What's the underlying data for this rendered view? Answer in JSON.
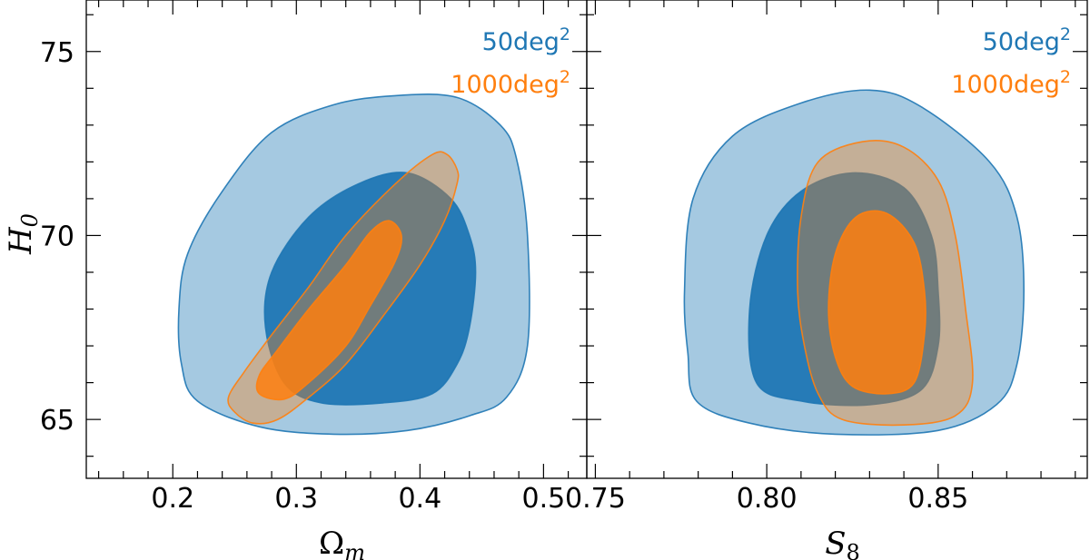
{
  "chart_data": [
    {
      "type": "contour",
      "panel": "left",
      "xlabel_main": "Ω",
      "xlabel_sub": "m",
      "ylabel_main": "H",
      "ylabel_sub": "0",
      "xlim": [
        0.13,
        0.535
      ],
      "ylim": [
        63.4,
        76.4
      ],
      "xticks": [
        0.2,
        0.3,
        0.4,
        0.5
      ],
      "xtick_labels": [
        "0.2",
        "0.3",
        "0.4",
        "0.5"
      ],
      "yticks": [
        65,
        70,
        75
      ],
      "ytick_labels": [
        "65",
        "70",
        "75"
      ],
      "legend": [
        {
          "base": "50deg",
          "sup": "2",
          "color": "#1f77b4"
        },
        {
          "base": "1000deg",
          "sup": "2",
          "color": "#ff7f0e"
        }
      ],
      "series": [
        {
          "name": "50deg2",
          "color": "#1f77b4",
          "levels": [
            {
              "level": "2sigma",
              "fill_opacity": 0.4,
              "points": [
                [
                  0.22,
                  65.5
                ],
                [
                  0.27,
                  64.8
                ],
                [
                  0.33,
                  64.6
                ],
                [
                  0.39,
                  64.7
                ],
                [
                  0.44,
                  65.1
                ],
                [
                  0.47,
                  65.6
                ],
                [
                  0.487,
                  67.0
                ],
                [
                  0.487,
                  70.0
                ],
                [
                  0.478,
                  72.1
                ],
                [
                  0.465,
                  73.0
                ],
                [
                  0.43,
                  73.75
                ],
                [
                  0.38,
                  73.8
                ],
                [
                  0.33,
                  73.55
                ],
                [
                  0.28,
                  72.8
                ],
                [
                  0.24,
                  71.2
                ],
                [
                  0.212,
                  69.5
                ],
                [
                  0.205,
                  68.0
                ],
                [
                  0.207,
                  66.5
                ]
              ]
            },
            {
              "level": "1sigma",
              "fill_opacity": 0.95,
              "points": [
                [
                  0.29,
                  66.0
                ],
                [
                  0.32,
                  65.45
                ],
                [
                  0.37,
                  65.45
                ],
                [
                  0.41,
                  65.7
                ],
                [
                  0.43,
                  66.5
                ],
                [
                  0.44,
                  67.5
                ],
                [
                  0.445,
                  69.0
                ],
                [
                  0.44,
                  70.0
                ],
                [
                  0.425,
                  71.0
                ],
                [
                  0.39,
                  71.7
                ],
                [
                  0.35,
                  71.4
                ],
                [
                  0.31,
                  70.5
                ],
                [
                  0.28,
                  69.0
                ],
                [
                  0.275,
                  67.5
                ]
              ]
            }
          ]
        },
        {
          "name": "1000deg2",
          "color": "#ff7f0e",
          "levels": [
            {
              "level": "2sigma",
              "fill_opacity": 0.35,
              "points": [
                [
                  0.25,
                  65.2
                ],
                [
                  0.265,
                  64.9
                ],
                [
                  0.285,
                  65.0
                ],
                [
                  0.31,
                  65.6
                ],
                [
                  0.34,
                  66.5
                ],
                [
                  0.37,
                  67.8
                ],
                [
                  0.4,
                  69.2
                ],
                [
                  0.42,
                  70.4
                ],
                [
                  0.43,
                  71.4
                ],
                [
                  0.43,
                  71.8
                ],
                [
                  0.422,
                  72.2
                ],
                [
                  0.41,
                  72.2
                ],
                [
                  0.38,
                  71.4
                ],
                [
                  0.34,
                  70.0
                ],
                [
                  0.31,
                  68.6
                ],
                [
                  0.28,
                  67.3
                ],
                [
                  0.258,
                  66.3
                ],
                [
                  0.245,
                  65.6
                ]
              ]
            },
            {
              "level": "1sigma",
              "fill_opacity": 0.85,
              "points": [
                [
                  0.27,
                  65.7
                ],
                [
                  0.29,
                  65.55
                ],
                [
                  0.31,
                  66.0
                ],
                [
                  0.34,
                  67.0
                ],
                [
                  0.36,
                  68.1
                ],
                [
                  0.38,
                  69.3
                ],
                [
                  0.385,
                  70.0
                ],
                [
                  0.375,
                  70.4
                ],
                [
                  0.36,
                  70.1
                ],
                [
                  0.34,
                  69.2
                ],
                [
                  0.31,
                  68.0
                ],
                [
                  0.285,
                  66.9
                ],
                [
                  0.27,
                  66.2
                ]
              ]
            }
          ]
        }
      ]
    },
    {
      "type": "contour",
      "panel": "right",
      "xlabel_main": "S",
      "xlabel_sub": "8",
      "xlim": [
        0.7475,
        0.8935
      ],
      "ylim": [
        63.4,
        76.4
      ],
      "xticks": [
        0.75,
        0.8,
        0.85
      ],
      "xtick_labels": [
        "0.75",
        "0.80",
        "0.85"
      ],
      "legend": [
        {
          "base": "50deg",
          "sup": "2",
          "color": "#1f77b4"
        },
        {
          "base": "1000deg",
          "sup": "2",
          "color": "#ff7f0e"
        }
      ],
      "series": [
        {
          "name": "50deg2",
          "color": "#1f77b4",
          "levels": [
            {
              "level": "2sigma",
              "fill_opacity": 0.4,
              "points": [
                [
                  0.7795,
                  65.5
                ],
                [
                  0.795,
                  64.9
                ],
                [
                  0.82,
                  64.6
                ],
                [
                  0.85,
                  64.7
                ],
                [
                  0.867,
                  65.4
                ],
                [
                  0.873,
                  66.5
                ],
                [
                  0.875,
                  68.5
                ],
                [
                  0.873,
                  70.5
                ],
                [
                  0.865,
                  72.0
                ],
                [
                  0.845,
                  73.5
                ],
                [
                  0.83,
                  73.95
                ],
                [
                  0.81,
                  73.6
                ],
                [
                  0.79,
                  72.7
                ],
                [
                  0.7785,
                  71.0
                ],
                [
                  0.776,
                  68.5
                ],
                [
                  0.777,
                  66.8
                ]
              ]
            },
            {
              "level": "1sigma",
              "fill_opacity": 0.95,
              "points": [
                [
                  0.797,
                  66.0
                ],
                [
                  0.81,
                  65.5
                ],
                [
                  0.83,
                  65.4
                ],
                [
                  0.845,
                  65.8
                ],
                [
                  0.85,
                  67.0
                ],
                [
                  0.85,
                  68.5
                ],
                [
                  0.848,
                  70.0
                ],
                [
                  0.84,
                  71.3
                ],
                [
                  0.825,
                  71.7
                ],
                [
                  0.81,
                  71.2
                ],
                [
                  0.8,
                  70.0
                ],
                [
                  0.795,
                  68.0
                ]
              ]
            }
          ]
        },
        {
          "name": "1000deg2",
          "color": "#ff7f0e",
          "levels": [
            {
              "level": "2sigma",
              "fill_opacity": 0.35,
              "points": [
                [
                  0.815,
                  65.7
                ],
                [
                  0.822,
                  65.0
                ],
                [
                  0.84,
                  64.85
                ],
                [
                  0.855,
                  65.1
                ],
                [
                  0.86,
                  66.0
                ],
                [
                  0.858,
                  68.0
                ],
                [
                  0.855,
                  70.0
                ],
                [
                  0.85,
                  71.5
                ],
                [
                  0.84,
                  72.4
                ],
                [
                  0.828,
                  72.55
                ],
                [
                  0.815,
                  72.0
                ],
                [
                  0.81,
                  70.5
                ],
                [
                  0.809,
                  68.5
                ],
                [
                  0.811,
                  67.0
                ]
              ]
            },
            {
              "level": "1sigma",
              "fill_opacity": 0.85,
              "points": [
                [
                  0.825,
                  65.9
                ],
                [
                  0.835,
                  65.7
                ],
                [
                  0.843,
                  66.0
                ],
                [
                  0.846,
                  67.3
                ],
                [
                  0.846,
                  68.5
                ],
                [
                  0.843,
                  69.8
                ],
                [
                  0.835,
                  70.6
                ],
                [
                  0.826,
                  70.5
                ],
                [
                  0.82,
                  69.5
                ],
                [
                  0.818,
                  68.0
                ],
                [
                  0.82,
                  66.7
                ]
              ]
            }
          ]
        }
      ]
    }
  ]
}
